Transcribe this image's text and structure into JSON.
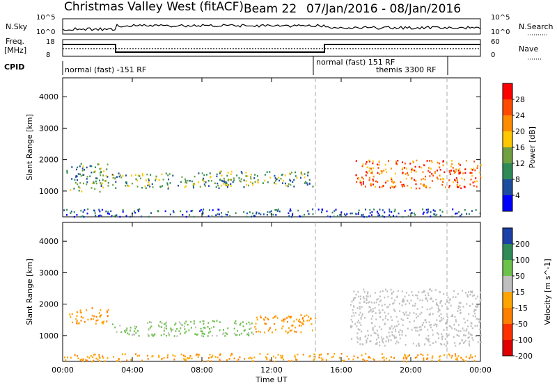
{
  "title": {
    "station": "Christmas Valley West (fitACF)",
    "beam": "Beam 22",
    "dates": "07/Jan/2016 - 08/Jan/2016"
  },
  "status_panels": {
    "nsky_label": "N.Sky",
    "nsearch_label": "N.Search",
    "nsky_ticks": [
      "10^5",
      "10^0"
    ],
    "nsearch_ticks": [
      "10^5",
      "10^0"
    ],
    "freq_label_1": "Freq.",
    "freq_label_2": "[MHz]",
    "freq_ticks": [
      "18",
      "8"
    ],
    "nave_label": "Nave",
    "nave_ticks": [
      "60",
      "0"
    ],
    "cpid_label": "CPID",
    "cpid_segments": [
      "normal (fast) -151 RF",
      "normal (fast) 151 RF",
      "themis 3300 RF"
    ]
  },
  "chart_data": [
    {
      "type": "heatmap",
      "panel": "power",
      "ylabel": "Slant Range [km]",
      "xlabel": "",
      "x_ticks": [
        "00:00",
        "04:00",
        "08:00",
        "12:00",
        "16:00",
        "20:00",
        "00:00"
      ],
      "y_ticks": [
        1000,
        2000,
        3000,
        4000
      ],
      "xlim_hours": [
        0,
        24
      ],
      "ylim_km": [
        180,
        4600
      ],
      "colorbar": {
        "label": "Power [dB]",
        "ticks": [
          "28",
          "24",
          "20",
          "16",
          "12",
          "8",
          "4"
        ],
        "colors": [
          "#ff0000",
          "#ff4a00",
          "#ff8c00",
          "#ffc800",
          "#70a040",
          "#2e8b57",
          "#1c4d9e",
          "#0000ff"
        ]
      },
      "echo_regions": [
        {
          "t_start": 0.2,
          "t_end": 2.6,
          "range_start": 1000,
          "range_end": 1900,
          "level": "medium"
        },
        {
          "t_start": 2.8,
          "t_end": 9.5,
          "range_start": 1100,
          "range_end": 1600,
          "level": "medium"
        },
        {
          "t_start": 9.0,
          "t_end": 14.5,
          "range_start": 1150,
          "range_end": 1650,
          "level": "medium"
        },
        {
          "t_start": 16.8,
          "t_end": 24.0,
          "range_start": 1100,
          "range_end": 2000,
          "level": "high"
        },
        {
          "t_start": 0.0,
          "t_end": 24.0,
          "range_start": 200,
          "range_end": 450,
          "level": "low"
        }
      ]
    },
    {
      "type": "heatmap",
      "panel": "velocity",
      "ylabel": "Slant Range [km]",
      "xlabel": "Time UT",
      "x_ticks": [
        "00:00",
        "04:00",
        "08:00",
        "12:00",
        "16:00",
        "20:00",
        "00:00"
      ],
      "y_ticks": [
        1000,
        2000,
        3000,
        4000
      ],
      "xlim_hours": [
        0,
        24
      ],
      "ylim_km": [
        180,
        4600
      ],
      "colorbar": {
        "label": "Velocity [m s^-1]",
        "ticks": [
          "200",
          "100",
          "50",
          "15",
          "-15",
          "-50",
          "-100",
          "-200"
        ],
        "colors": [
          "#1c3fa8",
          "#2e8b57",
          "#6cc24a",
          "#c0c0c0",
          "#ffa500",
          "#ff7f00",
          "#ff3000",
          "#e00000"
        ]
      },
      "echo_regions": [
        {
          "t_start": 0.2,
          "t_end": 2.6,
          "range_start": 1400,
          "range_end": 1900,
          "level": "orange"
        },
        {
          "t_start": 2.8,
          "t_end": 11.0,
          "range_start": 1000,
          "range_end": 1500,
          "level": "green"
        },
        {
          "t_start": 11.0,
          "t_end": 14.5,
          "range_start": 1100,
          "range_end": 1700,
          "level": "orange"
        },
        {
          "t_start": 16.5,
          "t_end": 24.0,
          "range_start": 700,
          "range_end": 2500,
          "level": "grey"
        },
        {
          "t_start": 0.0,
          "t_end": 24.0,
          "range_start": 200,
          "range_end": 450,
          "level": "orange"
        }
      ]
    }
  ]
}
